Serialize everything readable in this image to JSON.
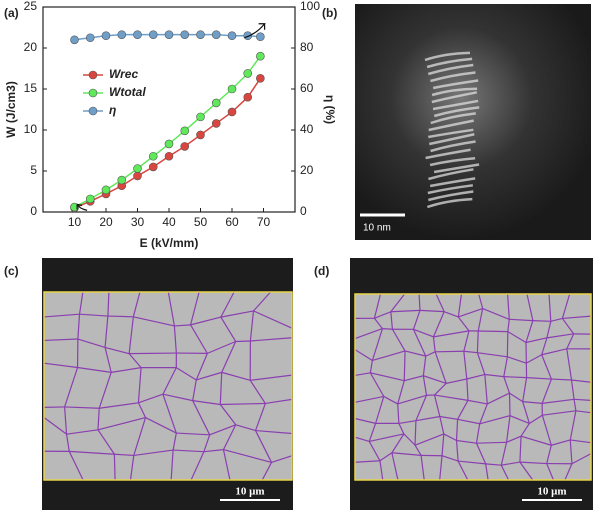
{
  "chart_data": {
    "type": "line",
    "x": [
      10,
      15,
      20,
      25,
      30,
      35,
      40,
      45,
      50,
      55,
      60,
      65,
      69
    ],
    "series": [
      {
        "name": "Wrec",
        "color": "#d9463f",
        "values": [
          0.5,
          1.3,
          2.2,
          3.2,
          4.4,
          5.5,
          6.8,
          8.0,
          9.4,
          10.8,
          12.2,
          14.0,
          16.3
        ]
      },
      {
        "name": "Wtotal",
        "color": "#5fe85a",
        "values": [
          0.6,
          1.6,
          2.7,
          3.9,
          5.3,
          6.8,
          8.3,
          9.9,
          11.6,
          13.3,
          15.0,
          16.9,
          19.0
        ]
      },
      {
        "name": "η",
        "color": "#6f9fc9",
        "axis": "y2",
        "values": [
          84,
          85,
          86,
          86.5,
          86.5,
          86.5,
          86.5,
          86.5,
          86.5,
          86.5,
          86,
          86,
          85.5
        ]
      }
    ],
    "xlim": [
      0,
      80
    ],
    "xticks": [
      10,
      20,
      30,
      40,
      50,
      60,
      70
    ],
    "ylim": [
      0,
      25
    ],
    "yticks": [
      0,
      5,
      10,
      15,
      20,
      25
    ],
    "y2lim": [
      0,
      100
    ],
    "y2ticks": [
      0,
      20,
      40,
      60,
      80,
      100
    ],
    "xlabel": "E (kV/mm)",
    "ylabel": "W (J/cm3)",
    "y2label": "η (%)",
    "legend": "upper left"
  },
  "panel_labels": [
    "(a)",
    "(b)",
    "(c)",
    "(d)"
  ],
  "scale_bars": [
    "10 nm",
    "10 μm",
    "10 μm"
  ]
}
